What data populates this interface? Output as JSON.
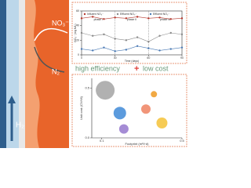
{
  "diagram": {
    "h2": "H₂",
    "no3": "NO₃⁻",
    "n2": "N₂"
  },
  "banner": {
    "left": "high efficiency",
    "plus": "+",
    "right": "low cost"
  },
  "chart_data": [
    {
      "type": "line",
      "x_label": "Time (days)",
      "y_label": "NO₃⁻ (mg N/L)",
      "x": [
        0,
        10,
        20,
        30,
        40,
        50,
        60,
        70,
        80,
        90
      ],
      "xlim": [
        0,
        90
      ],
      "xticks": [
        0,
        30,
        60,
        90
      ],
      "ylim": [
        0,
        60
      ],
      "yticks": [
        0,
        20,
        40,
        60
      ],
      "phase_bounds": [
        30,
        60
      ],
      "phases": [
        "phase I",
        "phase II",
        "phase III"
      ],
      "series": [
        {
          "name": "Influent NO₃⁻",
          "color": "#b5382e",
          "values": [
            50,
            52,
            49,
            51,
            50,
            52,
            50,
            51,
            49,
            50
          ]
        },
        {
          "name": "Effluent NO₃⁻",
          "color": "#8a8a8a",
          "values": [
            30,
            26,
            28,
            22,
            20,
            24,
            18,
            26,
            30,
            28
          ]
        },
        {
          "name": "Effluent NO₂⁻",
          "color": "#4a7ab5",
          "values": [
            8,
            6,
            10,
            5,
            7,
            12,
            9,
            6,
            8,
            10
          ]
        }
      ]
    },
    {
      "type": "scatter",
      "x_label": "Footprint (m²/t·d)",
      "y_label": "Unit cost (CNY/t)",
      "xlim": [
        0.05,
        0.5
      ],
      "xticks": [
        0.1,
        0.5
      ],
      "ylim": [
        0,
        0.6
      ],
      "yticks": [
        {
          "value": 0,
          "label": "0.0"
        },
        0.5
      ],
      "x": [
        0.117,
        0.36,
        0.32,
        0.19,
        0.21,
        0.4
      ],
      "values": [
        0.48,
        0.44,
        0.29,
        0.25,
        0.09,
        0.15
      ],
      "sizes": [
        12,
        4,
        6,
        8,
        6,
        7
      ],
      "colors": [
        "#a9a9a9",
        "#f0a030",
        "#f08a6a",
        "#4a90d9",
        "#9b7fd0",
        "#f5c542"
      ]
    }
  ]
}
